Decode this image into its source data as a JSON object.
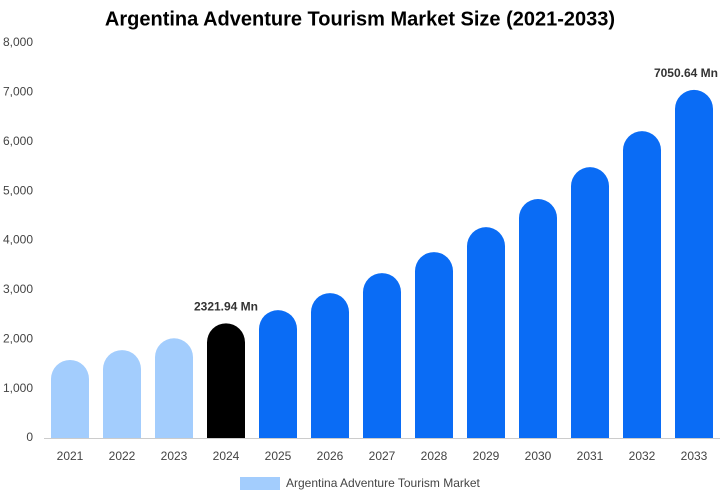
{
  "chart_data": {
    "type": "bar",
    "title": "Argentina Adventure Tourism Market Size (2021-2033)",
    "categories": [
      "2021",
      "2022",
      "2023",
      "2024",
      "2025",
      "2026",
      "2027",
      "2028",
      "2029",
      "2030",
      "2031",
      "2032",
      "2033"
    ],
    "series": [
      {
        "name": "Argentina Adventure Tourism Market",
        "color": "#a3cdfd",
        "colors": [
          "#a3cdfd",
          "#a3cdfd",
          "#a3cdfd",
          "#000000",
          "#0a6cf5",
          "#0a6cf5",
          "#0a6cf5",
          "#0a6cf5",
          "#0a6cf5",
          "#0a6cf5",
          "#0a6cf5",
          "#0a6cf5",
          "#0a6cf5"
        ],
        "values": [
          1580,
          1780,
          2020,
          2321.94,
          2590,
          2935,
          3340,
          3765,
          4270,
          4840,
          5485,
          6215,
          7050.64
        ],
        "value_labels": [
          null,
          null,
          null,
          "2321.94 Mn",
          null,
          null,
          null,
          null,
          null,
          null,
          null,
          null,
          "7050.64 Mn"
        ]
      }
    ],
    "ylim": [
      0,
      8000
    ],
    "yticks": [
      0,
      {
        "value": 1000,
        "label": "1,000"
      },
      {
        "value": 2000,
        "label": "2,000"
      },
      {
        "value": 3000,
        "label": "3,000"
      },
      {
        "value": 4000,
        "label": "4,000"
      },
      {
        "value": 5000,
        "label": "5,000"
      },
      {
        "value": 6000,
        "label": "6,000"
      },
      {
        "value": 7000,
        "label": "7,000"
      },
      {
        "value": 8000,
        "label": "8,000"
      }
    ],
    "grid": false,
    "legend": "bottom"
  }
}
